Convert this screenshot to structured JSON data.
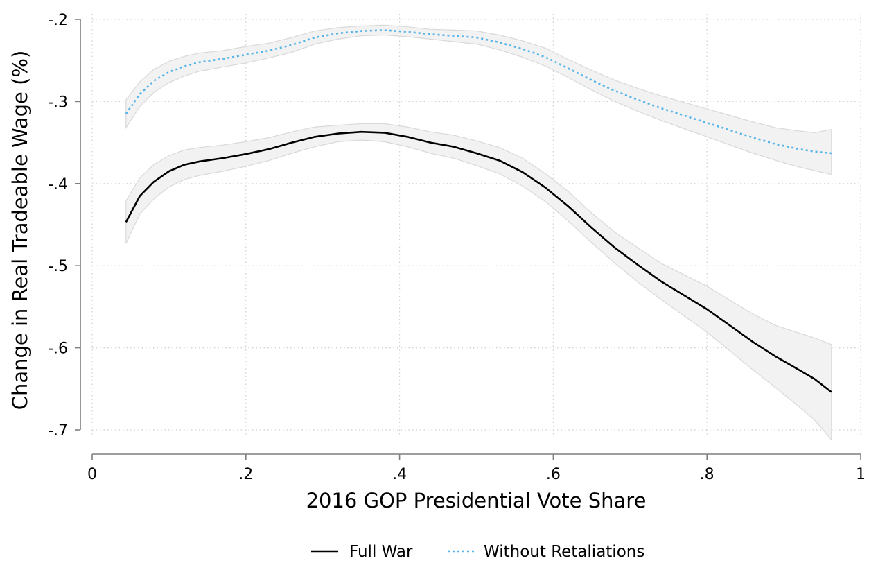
{
  "chart_data": {
    "type": "line",
    "xlabel": "2016 GOP Presidential Vote Share",
    "ylabel": "Change in Real Tradeable Wage (%)",
    "xlim": [
      0,
      1
    ],
    "ylim": [
      -0.72,
      -0.19
    ],
    "x_ticks": [
      0,
      0.2,
      0.4,
      0.6,
      0.8,
      1
    ],
    "x_tick_labels": [
      "0",
      ".2",
      ".4",
      ".6",
      ".8",
      "1"
    ],
    "y_ticks": [
      -0.2,
      -0.3,
      -0.4,
      -0.5,
      -0.6,
      -0.7
    ],
    "y_tick_labels": [
      "-.2",
      "-.3",
      "-.4",
      "-.5",
      "-.6",
      "-.7"
    ],
    "grid": true,
    "legend_position": "bottom",
    "x": [
      0.044,
      0.062,
      0.08,
      0.1,
      0.12,
      0.14,
      0.17,
      0.2,
      0.23,
      0.26,
      0.29,
      0.32,
      0.35,
      0.38,
      0.41,
      0.44,
      0.47,
      0.5,
      0.53,
      0.56,
      0.59,
      0.62,
      0.65,
      0.68,
      0.71,
      0.74,
      0.77,
      0.8,
      0.83,
      0.86,
      0.89,
      0.92,
      0.94,
      0.962
    ],
    "series": [
      {
        "name": "Full War",
        "color": "#000000",
        "dash": "solid",
        "values": [
          -0.447,
          -0.415,
          -0.398,
          -0.385,
          -0.377,
          -0.373,
          -0.369,
          -0.364,
          -0.358,
          -0.35,
          -0.343,
          -0.339,
          -0.337,
          -0.338,
          -0.343,
          -0.35,
          -0.355,
          -0.363,
          -0.372,
          -0.386,
          -0.405,
          -0.428,
          -0.454,
          -0.478,
          -0.499,
          -0.519,
          -0.536,
          -0.553,
          -0.573,
          -0.593,
          -0.611,
          -0.627,
          -0.638,
          -0.654
        ],
        "ci_lower": [
          -0.473,
          -0.437,
          -0.419,
          -0.404,
          -0.395,
          -0.39,
          -0.385,
          -0.379,
          -0.372,
          -0.363,
          -0.355,
          -0.349,
          -0.347,
          -0.349,
          -0.355,
          -0.363,
          -0.369,
          -0.378,
          -0.388,
          -0.403,
          -0.422,
          -0.446,
          -0.472,
          -0.497,
          -0.52,
          -0.541,
          -0.561,
          -0.581,
          -0.604,
          -0.627,
          -0.649,
          -0.672,
          -0.688,
          -0.712
        ],
        "ci_upper": [
          -0.421,
          -0.393,
          -0.377,
          -0.366,
          -0.359,
          -0.356,
          -0.353,
          -0.349,
          -0.344,
          -0.337,
          -0.331,
          -0.329,
          -0.327,
          -0.327,
          -0.331,
          -0.337,
          -0.341,
          -0.348,
          -0.356,
          -0.369,
          -0.388,
          -0.41,
          -0.436,
          -0.459,
          -0.478,
          -0.497,
          -0.511,
          -0.525,
          -0.542,
          -0.559,
          -0.573,
          -0.582,
          -0.588,
          -0.596
        ]
      },
      {
        "name": "Without Retaliations",
        "color": "#56b4e9",
        "dash": "dotted",
        "values": [
          -0.315,
          -0.291,
          -0.275,
          -0.264,
          -0.257,
          -0.252,
          -0.248,
          -0.243,
          -0.238,
          -0.231,
          -0.222,
          -0.217,
          -0.214,
          -0.213,
          -0.215,
          -0.218,
          -0.22,
          -0.222,
          -0.228,
          -0.236,
          -0.246,
          -0.26,
          -0.274,
          -0.287,
          -0.298,
          -0.308,
          -0.317,
          -0.326,
          -0.335,
          -0.344,
          -0.352,
          -0.358,
          -0.361,
          -0.363
        ],
        "ci_lower": [
          -0.332,
          -0.306,
          -0.289,
          -0.277,
          -0.269,
          -0.263,
          -0.258,
          -0.253,
          -0.247,
          -0.24,
          -0.23,
          -0.224,
          -0.22,
          -0.219,
          -0.221,
          -0.224,
          -0.227,
          -0.23,
          -0.237,
          -0.246,
          -0.257,
          -0.271,
          -0.286,
          -0.3,
          -0.312,
          -0.323,
          -0.333,
          -0.343,
          -0.353,
          -0.363,
          -0.372,
          -0.38,
          -0.384,
          -0.389
        ],
        "ci_upper": [
          -0.298,
          -0.276,
          -0.261,
          -0.251,
          -0.245,
          -0.241,
          -0.238,
          -0.233,
          -0.229,
          -0.222,
          -0.214,
          -0.21,
          -0.208,
          -0.207,
          -0.209,
          -0.212,
          -0.213,
          -0.214,
          -0.219,
          -0.226,
          -0.235,
          -0.249,
          -0.262,
          -0.274,
          -0.284,
          -0.293,
          -0.301,
          -0.309,
          -0.317,
          -0.325,
          -0.332,
          -0.336,
          -0.338,
          -0.334
        ]
      }
    ]
  }
}
